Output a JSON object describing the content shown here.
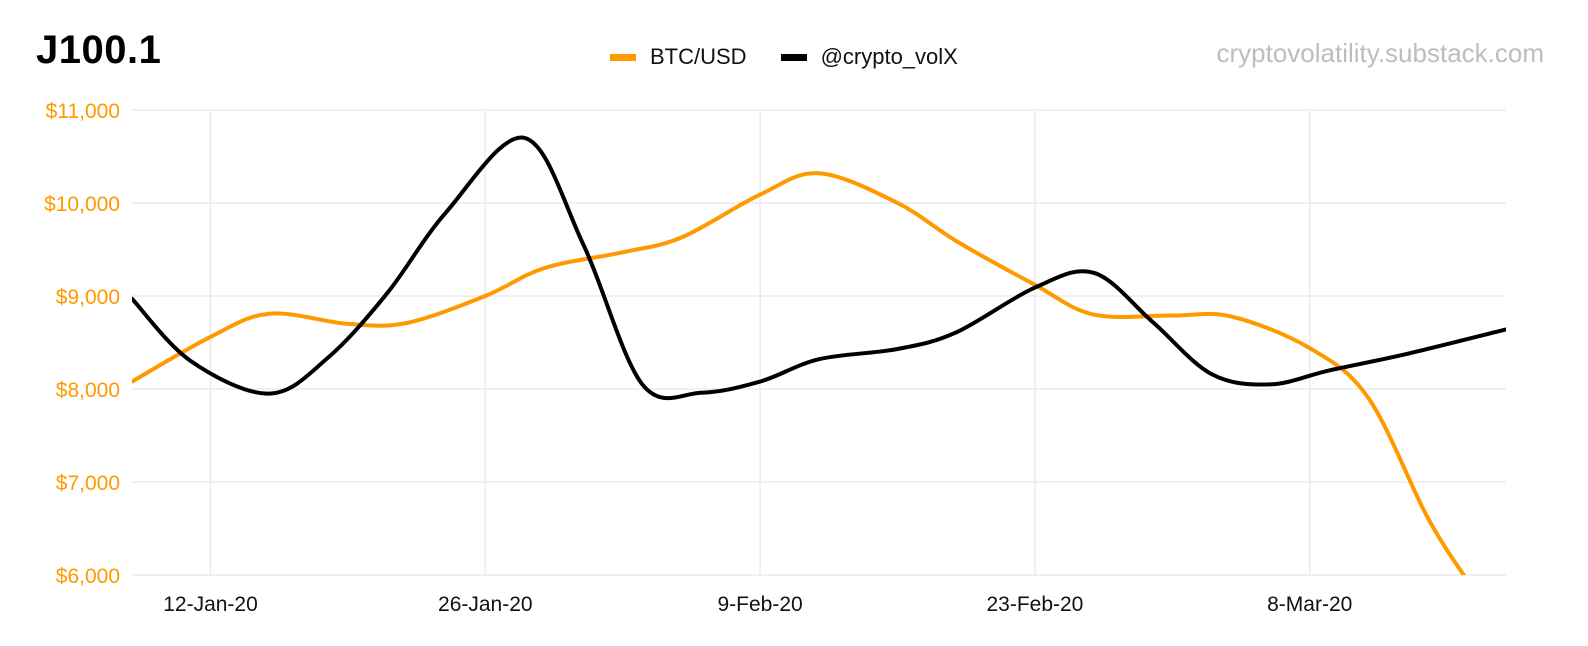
{
  "title": "J100.1",
  "source": "cryptovolatility.substack.com",
  "chart_data": {
    "type": "line",
    "y_axis": {
      "ylim": [
        6000,
        11000
      ],
      "ticks": [
        11000,
        10000,
        9000,
        8000,
        7000,
        6000
      ],
      "tick_labels": [
        "$11,000",
        "$10,000",
        "$9,000",
        "$8,000",
        "$7,000",
        "$6,000"
      ],
      "color": "#ff9900"
    },
    "x_axis": {
      "xlim": [
        "2020-01-08",
        "2020-03-18"
      ],
      "ticks": [
        "2020-01-12",
        "2020-01-26",
        "2020-02-09",
        "2020-02-23",
        "2020-03-08"
      ],
      "tick_labels": [
        "12-Jan-20",
        "26-Jan-20",
        "9-Feb-20",
        "23-Feb-20",
        "8-Mar-20"
      ]
    },
    "grid": true,
    "legend_position": "top",
    "series": [
      {
        "name": "BTC/USD",
        "color": "#ff9900",
        "x": [
          "2020-01-08",
          "2020-01-12",
          "2020-01-15",
          "2020-01-19",
          "2020-01-22",
          "2020-01-26",
          "2020-01-29",
          "2020-02-02",
          "2020-02-05",
          "2020-02-09",
          "2020-02-12",
          "2020-02-16",
          "2020-02-19",
          "2020-02-23",
          "2020-02-26",
          "2020-03-01",
          "2020-03-04",
          "2020-03-08",
          "2020-03-11",
          "2020-03-14",
          "2020-03-16"
        ],
        "values": [
          8080,
          8560,
          8810,
          8700,
          8710,
          9000,
          9300,
          9470,
          9630,
          10090,
          10320,
          10000,
          9590,
          9120,
          8800,
          8790,
          8780,
          8440,
          7900,
          6620,
          5950
        ]
      },
      {
        "name": "@crypto_volX",
        "color": "#000000",
        "x": [
          "2020-01-08",
          "2020-01-11",
          "2020-01-15",
          "2020-01-18",
          "2020-01-21",
          "2020-01-24",
          "2020-01-28",
          "2020-01-31",
          "2020-02-03",
          "2020-02-06",
          "2020-02-09",
          "2020-02-12",
          "2020-02-16",
          "2020-02-19",
          "2020-02-23",
          "2020-02-26",
          "2020-02-29",
          "2020-03-03",
          "2020-03-06",
          "2020-03-09",
          "2020-03-13",
          "2020-03-18"
        ],
        "values": [
          8970,
          8300,
          7950,
          8340,
          9030,
          9900,
          10700,
          9550,
          8050,
          7960,
          8080,
          8320,
          8430,
          8610,
          9090,
          9250,
          8720,
          8160,
          8050,
          8200,
          8380,
          8640
        ]
      }
    ]
  }
}
